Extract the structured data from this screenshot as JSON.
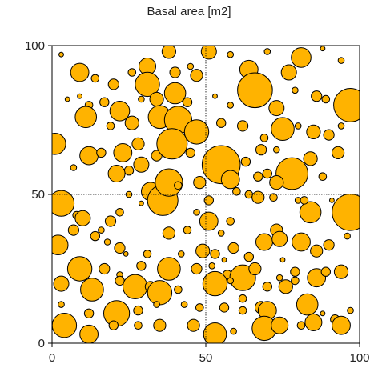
{
  "chart_data": {
    "type": "scatter",
    "title": "Basal area [m2]",
    "xlabel": "",
    "ylabel": "",
    "xlim": [
      0,
      100
    ],
    "ylim": [
      0,
      100
    ],
    "xticks": [
      "0",
      "50",
      "100"
    ],
    "yticks": [
      "0",
      "50",
      "100"
    ],
    "reference_lines": {
      "x": 50,
      "y": 50,
      "style": "dotted"
    },
    "marker_color": "#FFB300",
    "marker_edge_color": "#000000",
    "size_encodes": "basal area",
    "points": [
      [
        3,
        97,
        0.3
      ],
      [
        9,
        91,
        1.2
      ],
      [
        14,
        89,
        0.5
      ],
      [
        20,
        87,
        0.7
      ],
      [
        26,
        91,
        0.5
      ],
      [
        31,
        93,
        1.1
      ],
      [
        38,
        98,
        0.9
      ],
      [
        40,
        91,
        0.7
      ],
      [
        45,
        93,
        0.4
      ],
      [
        47,
        90,
        0.8
      ],
      [
        51,
        98,
        1.0
      ],
      [
        58,
        97,
        0.4
      ],
      [
        64,
        92,
        1.2
      ],
      [
        70,
        98,
        0.4
      ],
      [
        77,
        91,
        1.0
      ],
      [
        81,
        96,
        1.3
      ],
      [
        88,
        99,
        0.3
      ],
      [
        94,
        95,
        0.4
      ],
      [
        5,
        82,
        0.3
      ],
      [
        9,
        83,
        0.3
      ],
      [
        12,
        80,
        0.5
      ],
      [
        17,
        81,
        0.6
      ],
      [
        22,
        78,
        1.3
      ],
      [
        29,
        82,
        0.4
      ],
      [
        31,
        87,
        1.6
      ],
      [
        34,
        82,
        0.9
      ],
      [
        40,
        84,
        1.4
      ],
      [
        44,
        81,
        0.6
      ],
      [
        53,
        83,
        0.3
      ],
      [
        58,
        80,
        0.4
      ],
      [
        66,
        85,
        2.3
      ],
      [
        73,
        79,
        1.0
      ],
      [
        79,
        85,
        0.4
      ],
      [
        86,
        83,
        0.7
      ],
      [
        89,
        82,
        0.5
      ],
      [
        97,
        80,
        2.2
      ],
      [
        11,
        76,
        1.4
      ],
      [
        19,
        73,
        0.5
      ],
      [
        26,
        74,
        0.9
      ],
      [
        35,
        76,
        1.5
      ],
      [
        41,
        75,
        1.8
      ],
      [
        47,
        71,
        1.6
      ],
      [
        55,
        74,
        0.6
      ],
      [
        62,
        73,
        0.7
      ],
      [
        69,
        69,
        0.5
      ],
      [
        75,
        72,
        1.5
      ],
      [
        80,
        73,
        0.4
      ],
      [
        85,
        71,
        0.9
      ],
      [
        90,
        70,
        0.7
      ],
      [
        94,
        73,
        0.4
      ],
      [
        1,
        67,
        1.4
      ],
      [
        7,
        59,
        0.4
      ],
      [
        12,
        63,
        1.2
      ],
      [
        16,
        64,
        0.6
      ],
      [
        23,
        64,
        1.2
      ],
      [
        28,
        67,
        0.8
      ],
      [
        34,
        63,
        0.7
      ],
      [
        39,
        67,
        2.0
      ],
      [
        45,
        64,
        0.6
      ],
      [
        29,
        60,
        1.0
      ],
      [
        25,
        58,
        0.6
      ],
      [
        21,
        57,
        1.1
      ],
      [
        55,
        60,
        2.5
      ],
      [
        63,
        61,
        0.6
      ],
      [
        68,
        65,
        0.7
      ],
      [
        73,
        65,
        0.4
      ],
      [
        78,
        57,
        2.1
      ],
      [
        84,
        62,
        0.9
      ],
      [
        88,
        56,
        0.5
      ],
      [
        93,
        64,
        0.8
      ],
      [
        3,
        47,
        1.7
      ],
      [
        8,
        43,
        0.5
      ],
      [
        10,
        42,
        1.0
      ],
      [
        16,
        38,
        0.4
      ],
      [
        19,
        41,
        0.7
      ],
      [
        22,
        44,
        0.5
      ],
      [
        25,
        50,
        0.4
      ],
      [
        29,
        47,
        0.3
      ],
      [
        32,
        51,
        1.2
      ],
      [
        36,
        48,
        2.0
      ],
      [
        38,
        54,
        1.8
      ],
      [
        41,
        53,
        0.5
      ],
      [
        48,
        54,
        0.8
      ],
      [
        51,
        48,
        0.6
      ],
      [
        58,
        55,
        1.2
      ],
      [
        60,
        51,
        0.5
      ],
      [
        64,
        50,
        0.5
      ],
      [
        67,
        49,
        0.8
      ],
      [
        72,
        49,
        0.5
      ],
      [
        67,
        56,
        0.6
      ],
      [
        70,
        57,
        0.6
      ],
      [
        73,
        54,
        0.9
      ],
      [
        84,
        44,
        1.4
      ],
      [
        80,
        48,
        0.4
      ],
      [
        91,
        48,
        0.3
      ],
      [
        97,
        44,
        2.4
      ],
      [
        82,
        48,
        0.5
      ],
      [
        2,
        33,
        1.3
      ],
      [
        7,
        38,
        0.7
      ],
      [
        14,
        36,
        0.6
      ],
      [
        18,
        34,
        0.4
      ],
      [
        22,
        32,
        0.7
      ],
      [
        31,
        30,
        0.5
      ],
      [
        38,
        37,
        0.8
      ],
      [
        44,
        38,
        0.5
      ],
      [
        51,
        41,
        1.2
      ],
      [
        58,
        41,
        0.5
      ],
      [
        55,
        37,
        0.4
      ],
      [
        49,
        31,
        0.9
      ],
      [
        53,
        30,
        0.6
      ],
      [
        59,
        32,
        0.7
      ],
      [
        64,
        29,
        0.6
      ],
      [
        69,
        34,
        1.1
      ],
      [
        73,
        38,
        0.8
      ],
      [
        74,
        35,
        1.0
      ],
      [
        81,
        34,
        1.2
      ],
      [
        86,
        31,
        0.8
      ],
      [
        90,
        33,
        0.7
      ],
      [
        96,
        36,
        0.4
      ],
      [
        9,
        25,
        1.6
      ],
      [
        17,
        25,
        0.7
      ],
      [
        22,
        23,
        0.4
      ],
      [
        29,
        26,
        0.6
      ],
      [
        38,
        25,
        1.5
      ],
      [
        47,
        25,
        0.7
      ],
      [
        52,
        26,
        0.4
      ],
      [
        57,
        23,
        0.6
      ],
      [
        62,
        22,
        1.7
      ],
      [
        66,
        25,
        0.8
      ],
      [
        74,
        22,
        0.4
      ],
      [
        79,
        24,
        0.6
      ],
      [
        86,
        22,
        1.2
      ],
      [
        89,
        24,
        0.6
      ],
      [
        94,
        24,
        0.9
      ],
      [
        3,
        20,
        1.0
      ],
      [
        13,
        18,
        1.5
      ],
      [
        22,
        21,
        0.6
      ],
      [
        27,
        19,
        1.6
      ],
      [
        32,
        19,
        0.7
      ],
      [
        35,
        17,
        1.6
      ],
      [
        41,
        18,
        0.5
      ],
      [
        53,
        20,
        1.6
      ],
      [
        58,
        21,
        0.4
      ],
      [
        70,
        19,
        0.6
      ],
      [
        76,
        19,
        0.9
      ],
      [
        79,
        21,
        0.5
      ],
      [
        3,
        13,
        0.4
      ],
      [
        12,
        10,
        0.6
      ],
      [
        21,
        10,
        1.7
      ],
      [
        28,
        11,
        0.6
      ],
      [
        34,
        13,
        0.4
      ],
      [
        43,
        13,
        0.4
      ],
      [
        48,
        12,
        0.5
      ],
      [
        56,
        12,
        0.6
      ],
      [
        62,
        11,
        0.5
      ],
      [
        68,
        12,
        0.8
      ],
      [
        70,
        11,
        1.2
      ],
      [
        83,
        13,
        1.4
      ],
      [
        88,
        10,
        0.3
      ],
      [
        92,
        8,
        0.6
      ],
      [
        4,
        6,
        1.6
      ],
      [
        12,
        3,
        1.2
      ],
      [
        20,
        6,
        0.6
      ],
      [
        28,
        6,
        0.5
      ],
      [
        35,
        6,
        0.8
      ],
      [
        46,
        6,
        0.8
      ],
      [
        53,
        3,
        1.5
      ],
      [
        59,
        4,
        0.4
      ],
      [
        69,
        5,
        1.6
      ],
      [
        74,
        6,
        1.1
      ],
      [
        81,
        6,
        0.5
      ],
      [
        85,
        7,
        1.1
      ],
      [
        94,
        6,
        1.2
      ],
      [
        97,
        11,
        0.4
      ],
      [
        47,
        44,
        0.4
      ],
      [
        56,
        28,
        0.3
      ],
      [
        62,
        15,
        0.5
      ],
      [
        75,
        28,
        0.3
      ],
      [
        42,
        30,
        0.4
      ],
      [
        24,
        30,
        0.3
      ]
    ]
  }
}
